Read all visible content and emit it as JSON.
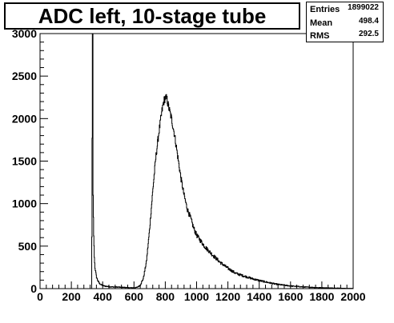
{
  "title": "ADC left, 10-stage tube",
  "stats": {
    "entries_label": "Entries",
    "entries_value": "1899022",
    "mean_label": "Mean",
    "mean_value": "498.4",
    "rms_label": "RMS",
    "rms_value": "292.5"
  },
  "chart_data": {
    "type": "histogram",
    "title": "ADC left, 10-stage tube",
    "xlabel": "",
    "ylabel": "",
    "xlim": [
      0,
      2000
    ],
    "ylim": [
      0,
      3000
    ],
    "x_ticks": [
      0,
      200,
      400,
      600,
      800,
      1000,
      1200,
      1400,
      1600,
      1800,
      2000
    ],
    "y_ticks": [
      0,
      500,
      1000,
      1500,
      2000,
      2500,
      3000
    ],
    "grid": false,
    "legend": "none",
    "series": [
      {
        "x": [
          320,
          330,
          335,
          338,
          342,
          346,
          350,
          360,
          370,
          380,
          400,
          430,
          460,
          500,
          540,
          580,
          600,
          620,
          640,
          660,
          680,
          700,
          720,
          740,
          760,
          780,
          790,
          800,
          810,
          820,
          830,
          840,
          860,
          880,
          900,
          920,
          940,
          960,
          980,
          1000,
          1050,
          1100,
          1150,
          1200,
          1250,
          1300,
          1350,
          1400,
          1450,
          1500,
          1550,
          1600,
          1650,
          1700,
          1750,
          1800,
          1850,
          1900,
          1950,
          2000
        ],
        "values": [
          0,
          0,
          3000,
          1200,
          700,
          420,
          260,
          140,
          90,
          60,
          35,
          25,
          20,
          18,
          14,
          10,
          10,
          15,
          40,
          120,
          320,
          700,
          1150,
          1550,
          1850,
          2100,
          2200,
          2250,
          2230,
          2150,
          2070,
          2000,
          1800,
          1550,
          1300,
          1100,
          940,
          840,
          720,
          630,
          500,
          400,
          310,
          240,
          180,
          150,
          120,
          95,
          75,
          55,
          42,
          32,
          24,
          18,
          14,
          10,
          8,
          6,
          4,
          3
        ]
      }
    ]
  }
}
